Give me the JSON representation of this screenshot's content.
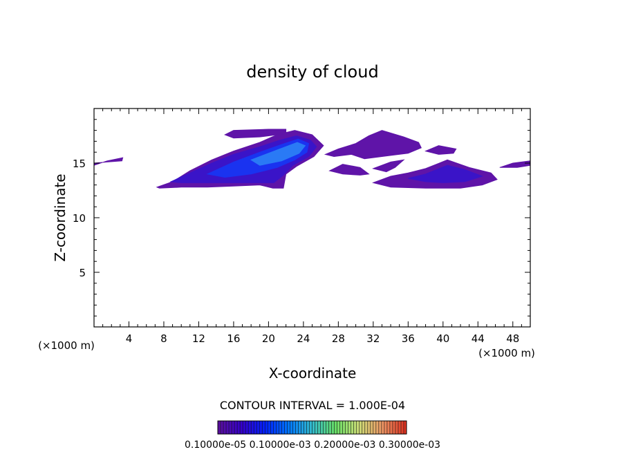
{
  "chart_data": {
    "type": "heatmap",
    "title": "density of cloud",
    "xlabel": "X-coordinate",
    "ylabel": "Z-coordinate",
    "x_unit": "(×1000 m)",
    "x_unit_right": "(×1000 m)",
    "xlim": [
      0,
      50
    ],
    "ylim": [
      0,
      20
    ],
    "x_ticks": [
      "4",
      "8",
      "12",
      "16",
      "20",
      "24",
      "28",
      "32",
      "36",
      "40",
      "44",
      "48"
    ],
    "y_ticks": [
      "5",
      "10",
      "15"
    ],
    "contour_interval_text": "CONTOUR INTERVAL = 1.000E-04",
    "colorbar_labels_text": "0.10000e-05 0.10000e-03 0.20000e-03 0.30000e-03",
    "colorbar_range": [
      1e-06,
      0.0003
    ],
    "colormap": [
      "#5a0fa0",
      "#3300cc",
      "#0022ff",
      "#0077ff",
      "#33bbcc",
      "#66dd66",
      "#ccdd77",
      "#ee9966",
      "#dd3322"
    ],
    "regions": [
      {
        "name": "main-cloud-outer",
        "level": 0.02,
        "points": [
          [
            7.2,
            12.8
          ],
          [
            9,
            13.3
          ],
          [
            11,
            14.3
          ],
          [
            13.5,
            15.3
          ],
          [
            16,
            16.1
          ],
          [
            19,
            16.9
          ],
          [
            21,
            17.6
          ],
          [
            23,
            18.0
          ],
          [
            25,
            17.6
          ],
          [
            26.3,
            16.6
          ],
          [
            25.2,
            15.6
          ],
          [
            23.2,
            14.7
          ],
          [
            22,
            14.0
          ],
          [
            21.7,
            12.7
          ],
          [
            20.5,
            12.7
          ],
          [
            19,
            13.0
          ],
          [
            16,
            12.9
          ],
          [
            13,
            12.8
          ],
          [
            10,
            12.8
          ],
          [
            7.5,
            12.7
          ]
        ]
      },
      {
        "name": "main-cloud-mid",
        "level": 0.08,
        "points": [
          [
            8.8,
            13.3
          ],
          [
            11,
            14.1
          ],
          [
            13.5,
            15.0
          ],
          [
            16,
            15.8
          ],
          [
            19,
            16.5
          ],
          [
            21.3,
            17.1
          ],
          [
            23.2,
            17.5
          ],
          [
            24.8,
            17.1
          ],
          [
            25.5,
            16.5
          ],
          [
            24.6,
            15.6
          ],
          [
            22.8,
            14.8
          ],
          [
            21.7,
            13.9
          ],
          [
            20.6,
            13.2
          ],
          [
            17,
            13.2
          ],
          [
            13,
            13.2
          ],
          [
            10,
            13.2
          ]
        ]
      },
      {
        "name": "main-cloud-core",
        "level": 0.18,
        "points": [
          [
            13,
            14.0
          ],
          [
            16,
            15.1
          ],
          [
            19,
            16.0
          ],
          [
            21.5,
            16.7
          ],
          [
            23.4,
            17.2
          ],
          [
            24.6,
            16.8
          ],
          [
            24.4,
            16.0
          ],
          [
            23,
            15.3
          ],
          [
            21,
            14.6
          ],
          [
            18,
            14.0
          ],
          [
            15,
            13.7
          ]
        ]
      },
      {
        "name": "main-cloud-peak",
        "level": 0.26,
        "points": [
          [
            18,
            15.3
          ],
          [
            21,
            16.2
          ],
          [
            23.3,
            16.9
          ],
          [
            24.2,
            16.6
          ],
          [
            23.5,
            15.9
          ],
          [
            21.5,
            15.2
          ],
          [
            19,
            14.8
          ]
        ]
      },
      {
        "name": "cloud-top-band",
        "level": 0.02,
        "points": [
          [
            15,
            17.6
          ],
          [
            16,
            18.0
          ],
          [
            20,
            18.1
          ],
          [
            22,
            18.1
          ],
          [
            22,
            17.7
          ],
          [
            19,
            17.4
          ],
          [
            16,
            17.3
          ]
        ]
      },
      {
        "name": "cloud-left-edge",
        "level": 0.02,
        "points": [
          [
            0,
            14.8
          ],
          [
            1.5,
            15.2
          ],
          [
            3.3,
            15.5
          ],
          [
            3.2,
            15.2
          ],
          [
            1.5,
            15.1
          ],
          [
            0,
            15.0
          ]
        ]
      },
      {
        "name": "cloud-right-upper",
        "level": 0.02,
        "points": [
          [
            26.5,
            15.8
          ],
          [
            28,
            16.3
          ],
          [
            30,
            16.8
          ],
          [
            31.5,
            17.5
          ],
          [
            33,
            18.0
          ],
          [
            35.5,
            17.4
          ],
          [
            37.2,
            16.9
          ],
          [
            37.5,
            16.4
          ],
          [
            36,
            15.9
          ],
          [
            34,
            15.7
          ],
          [
            31,
            15.4
          ],
          [
            29.5,
            15.8
          ],
          [
            27.5,
            15.6
          ]
        ]
      },
      {
        "name": "cloud-right-small",
        "level": 0.02,
        "points": [
          [
            38,
            16.1
          ],
          [
            39.5,
            16.6
          ],
          [
            41.5,
            16.3
          ],
          [
            41.2,
            15.9
          ],
          [
            39.5,
            15.8
          ]
        ]
      },
      {
        "name": "cloud-mid-band",
        "level": 0.02,
        "points": [
          [
            27,
            14.3
          ],
          [
            28.5,
            14.9
          ],
          [
            30.5,
            14.6
          ],
          [
            31.5,
            14.0
          ],
          [
            30.5,
            13.9
          ],
          [
            28.5,
            14.0
          ]
        ]
      },
      {
        "name": "cloud-mid-band2",
        "level": 0.02,
        "points": [
          [
            32,
            14.5
          ],
          [
            34,
            15.1
          ],
          [
            35.5,
            15.3
          ],
          [
            34.5,
            14.6
          ],
          [
            33.5,
            14.2
          ]
        ]
      },
      {
        "name": "cloud-right-lower-outer",
        "level": 0.02,
        "points": [
          [
            32,
            13.2
          ],
          [
            34,
            13.8
          ],
          [
            36,
            14.1
          ],
          [
            38,
            14.5
          ],
          [
            40.5,
            15.3
          ],
          [
            43,
            14.6
          ],
          [
            45.5,
            14.1
          ],
          [
            46.2,
            13.5
          ],
          [
            44.5,
            13.0
          ],
          [
            42,
            12.7
          ],
          [
            38,
            12.7
          ],
          [
            34,
            12.8
          ]
        ]
      },
      {
        "name": "cloud-right-lower-core",
        "level": 0.09,
        "points": [
          [
            36,
            13.6
          ],
          [
            38,
            14.0
          ],
          [
            40.5,
            14.8
          ],
          [
            42.5,
            14.4
          ],
          [
            44.5,
            13.8
          ],
          [
            42.5,
            13.3
          ],
          [
            40,
            13.2
          ],
          [
            38,
            13.3
          ]
        ]
      },
      {
        "name": "cloud-far-right",
        "level": 0.02,
        "points": [
          [
            46.5,
            14.6
          ],
          [
            48,
            15.0
          ],
          [
            50,
            15.2
          ],
          [
            50,
            14.8
          ],
          [
            48.5,
            14.6
          ]
        ]
      }
    ]
  }
}
